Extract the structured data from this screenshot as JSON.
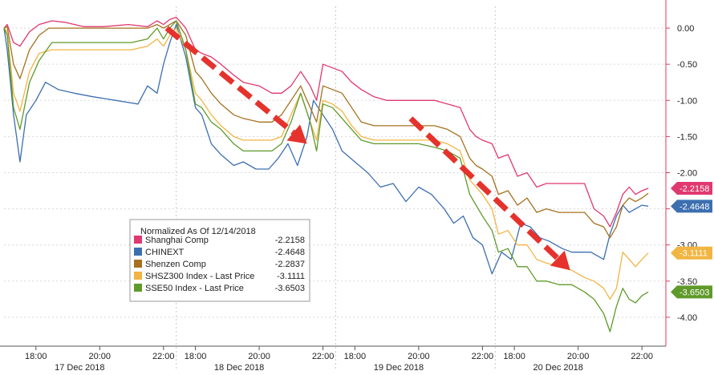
{
  "chart_data": {
    "type": "line",
    "legend": {
      "title": "Normalized As Of 12/14/2018",
      "placement": "left-center"
    },
    "ylim": [
      -4.4,
      0.3
    ],
    "yticks": [
      0.0,
      -0.5,
      -1.0,
      -1.5,
      -2.0,
      -2.5,
      -3.0,
      -3.5,
      -4.0
    ],
    "ytick_labels": [
      "0.00",
      "-0.50",
      "-1.00",
      "-1.50",
      "-2.00",
      "-2.50",
      "-3.00",
      "-3.50",
      "-4.00"
    ],
    "xlim": [
      0,
      4
    ],
    "time_ticks": [
      {
        "x": 0.2,
        "label": "18:00"
      },
      {
        "x": 0.6,
        "label": "20:00"
      },
      {
        "x": 1.0,
        "label": "22:00"
      },
      {
        "x": 1.2,
        "label": "18:00"
      },
      {
        "x": 1.6,
        "label": "20:00"
      },
      {
        "x": 2.0,
        "label": "22:00"
      },
      {
        "x": 2.2,
        "label": "18:00"
      },
      {
        "x": 2.6,
        "label": "20:00"
      },
      {
        "x": 3.0,
        "label": "22:00"
      },
      {
        "x": 3.2,
        "label": "18:00"
      },
      {
        "x": 3.6,
        "label": "20:00"
      },
      {
        "x": 4.0,
        "label": "22:00"
      }
    ],
    "day_separators": [
      1.08,
      2.08,
      3.08
    ],
    "date_labels": [
      {
        "x": 0.55,
        "label": "17 Dec 2018"
      },
      {
        "x": 1.55,
        "label": "18 Dec 2018"
      },
      {
        "x": 2.55,
        "label": "19 Dec 2018"
      },
      {
        "x": 3.55,
        "label": "20 Dec 2018"
      }
    ],
    "series": [
      {
        "name": "Shanghai Comp",
        "last": "-2.2158",
        "color": "#e0386f",
        "x": [
          0,
          0.02,
          0.06,
          0.1,
          0.16,
          0.22,
          0.3,
          0.38,
          0.5,
          0.62,
          0.78,
          0.9,
          0.96,
          1.0,
          1.04,
          1.08,
          1.14,
          1.2,
          1.24,
          1.3,
          1.36,
          1.44,
          1.5,
          1.6,
          1.68,
          1.74,
          1.8,
          1.86,
          1.92,
          1.96,
          2.0,
          2.06,
          2.12,
          2.18,
          2.24,
          2.32,
          2.4,
          2.5,
          2.6,
          2.7,
          2.78,
          2.86,
          2.92,
          2.96,
          3.0,
          3.06,
          3.1,
          3.16,
          3.22,
          3.28,
          3.34,
          3.4,
          3.48,
          3.56,
          3.64,
          3.7,
          3.76,
          3.8,
          3.84,
          3.88,
          3.92,
          3.96,
          4.0,
          4.04
        ],
        "y": [
          0.0,
          0.05,
          -0.2,
          -0.25,
          -0.05,
          0.05,
          0.1,
          0.08,
          0.02,
          0.02,
          0.05,
          0.02,
          0.1,
          0.05,
          0.12,
          0.15,
          0.0,
          -0.3,
          -0.35,
          -0.4,
          -0.5,
          -0.65,
          -0.75,
          -0.8,
          -0.9,
          -0.9,
          -0.8,
          -0.6,
          -0.8,
          -1.0,
          -0.5,
          -0.55,
          -0.6,
          -0.75,
          -0.85,
          -0.95,
          -1.0,
          -1.0,
          -1.0,
          -1.0,
          -1.05,
          -1.1,
          -1.4,
          -1.5,
          -1.55,
          -1.6,
          -1.8,
          -1.75,
          -2.05,
          -2.0,
          -2.2,
          -2.15,
          -2.15,
          -2.15,
          -2.15,
          -2.5,
          -2.6,
          -2.75,
          -2.55,
          -2.3,
          -2.2,
          -2.3,
          -2.25,
          -2.2158
        ]
      },
      {
        "name": "CHINEXT",
        "last": "-2.4648",
        "color": "#3d6fb0",
        "x": [
          0,
          0.02,
          0.06,
          0.1,
          0.14,
          0.2,
          0.26,
          0.34,
          0.44,
          0.56,
          0.7,
          0.84,
          0.9,
          0.96,
          1.0,
          1.04,
          1.08,
          1.14,
          1.2,
          1.24,
          1.3,
          1.36,
          1.44,
          1.5,
          1.58,
          1.66,
          1.72,
          1.78,
          1.84,
          1.9,
          1.94,
          2.0,
          2.06,
          2.12,
          2.2,
          2.28,
          2.36,
          2.44,
          2.52,
          2.6,
          2.68,
          2.76,
          2.82,
          2.88,
          2.94,
          3.0,
          3.06,
          3.12,
          3.18,
          3.24,
          3.3,
          3.36,
          3.42,
          3.5,
          3.56,
          3.62,
          3.68,
          3.72,
          3.76,
          3.8,
          3.84,
          3.88,
          3.92,
          3.96,
          4.0,
          4.04
        ],
        "y": [
          0.0,
          -0.3,
          -1.2,
          -1.85,
          -1.2,
          -1.0,
          -0.75,
          -0.85,
          -0.9,
          -0.95,
          -1.0,
          -1.05,
          -0.8,
          -0.9,
          -0.5,
          -0.2,
          0.05,
          -0.4,
          -1.1,
          -1.2,
          -1.6,
          -1.75,
          -1.9,
          -1.85,
          -1.95,
          -1.95,
          -1.8,
          -1.6,
          -1.9,
          -1.5,
          -1.0,
          -1.2,
          -1.4,
          -1.7,
          -1.85,
          -2.0,
          -2.2,
          -2.15,
          -2.4,
          -2.2,
          -2.3,
          -2.5,
          -2.7,
          -2.6,
          -2.9,
          -3.0,
          -3.4,
          -3.1,
          -3.2,
          -2.7,
          -2.75,
          -2.9,
          -2.95,
          -3.05,
          -3.1,
          -3.1,
          -3.1,
          -3.15,
          -3.2,
          -2.85,
          -2.6,
          -2.45,
          -2.55,
          -2.5,
          -2.45,
          -2.4648
        ]
      },
      {
        "name": "Shenzen Comp",
        "last": "-2.2837",
        "color": "#a6701e",
        "x": [
          0,
          0.02,
          0.06,
          0.1,
          0.16,
          0.22,
          0.28,
          0.36,
          0.5,
          0.64,
          0.78,
          0.9,
          0.96,
          1.0,
          1.04,
          1.08,
          1.14,
          1.2,
          1.24,
          1.3,
          1.36,
          1.44,
          1.5,
          1.6,
          1.68,
          1.74,
          1.8,
          1.86,
          1.92,
          1.96,
          2.0,
          2.06,
          2.12,
          2.18,
          2.24,
          2.32,
          2.4,
          2.5,
          2.6,
          2.7,
          2.78,
          2.86,
          2.92,
          2.96,
          3.0,
          3.06,
          3.1,
          3.16,
          3.22,
          3.28,
          3.34,
          3.4,
          3.48,
          3.56,
          3.64,
          3.7,
          3.76,
          3.8,
          3.84,
          3.88,
          3.92,
          3.96,
          4.0,
          4.04
        ],
        "y": [
          0.0,
          0.02,
          -0.5,
          -0.7,
          -0.3,
          -0.1,
          0.0,
          0.0,
          0.0,
          0.0,
          0.0,
          0.0,
          0.05,
          0.0,
          0.05,
          0.1,
          -0.1,
          -0.6,
          -0.7,
          -0.9,
          -1.05,
          -1.2,
          -1.25,
          -1.3,
          -1.3,
          -1.2,
          -1.0,
          -0.8,
          -1.1,
          -1.3,
          -0.8,
          -0.85,
          -0.9,
          -1.1,
          -1.3,
          -1.35,
          -1.35,
          -1.35,
          -1.35,
          -1.35,
          -1.4,
          -1.5,
          -1.8,
          -1.9,
          -1.95,
          -2.05,
          -2.3,
          -2.25,
          -2.45,
          -2.35,
          -2.55,
          -2.5,
          -2.55,
          -2.55,
          -2.55,
          -2.7,
          -2.75,
          -2.9,
          -2.75,
          -2.45,
          -2.35,
          -2.4,
          -2.35,
          -2.2837
        ]
      },
      {
        "name": "SHSZ300 Index - Last Price",
        "last": "-3.1111",
        "color": "#f2b542",
        "x": [
          0,
          0.02,
          0.06,
          0.1,
          0.16,
          0.22,
          0.3,
          0.4,
          0.52,
          0.66,
          0.8,
          0.9,
          0.96,
          1.0,
          1.04,
          1.08,
          1.14,
          1.2,
          1.24,
          1.3,
          1.36,
          1.44,
          1.5,
          1.6,
          1.68,
          1.74,
          1.8,
          1.86,
          1.92,
          1.96,
          2.0,
          2.06,
          2.12,
          2.18,
          2.24,
          2.32,
          2.4,
          2.5,
          2.6,
          2.7,
          2.78,
          2.86,
          2.92,
          2.96,
          3.0,
          3.06,
          3.1,
          3.16,
          3.22,
          3.28,
          3.34,
          3.4,
          3.48,
          3.56,
          3.64,
          3.7,
          3.76,
          3.8,
          3.84,
          3.88,
          3.92,
          3.96,
          4.0,
          4.04
        ],
        "y": [
          0.0,
          -0.05,
          -0.9,
          -1.15,
          -0.6,
          -0.35,
          -0.3,
          -0.3,
          -0.3,
          -0.3,
          -0.3,
          -0.25,
          -0.15,
          -0.25,
          -0.1,
          0.0,
          -0.3,
          -0.9,
          -1.0,
          -1.2,
          -1.35,
          -1.5,
          -1.55,
          -1.55,
          -1.55,
          -1.5,
          -1.2,
          -0.9,
          -1.3,
          -1.55,
          -1.0,
          -1.05,
          -1.15,
          -1.35,
          -1.5,
          -1.55,
          -1.55,
          -1.55,
          -1.55,
          -1.55,
          -1.6,
          -1.7,
          -2.1,
          -2.2,
          -2.3,
          -2.5,
          -2.85,
          -2.8,
          -3.0,
          -3.0,
          -3.2,
          -3.25,
          -3.3,
          -3.35,
          -3.45,
          -3.5,
          -3.6,
          -3.75,
          -3.6,
          -3.1,
          -3.2,
          -3.3,
          -3.2,
          -3.1111
        ]
      },
      {
        "name": "SSE50 Index - Last Price",
        "last": "-3.6503",
        "color": "#5f9a2a",
        "x": [
          0,
          0.02,
          0.06,
          0.1,
          0.16,
          0.22,
          0.3,
          0.4,
          0.52,
          0.66,
          0.8,
          0.9,
          0.96,
          1.0,
          1.04,
          1.08,
          1.14,
          1.2,
          1.24,
          1.3,
          1.36,
          1.44,
          1.5,
          1.6,
          1.68,
          1.74,
          1.8,
          1.86,
          1.92,
          1.96,
          2.0,
          2.06,
          2.12,
          2.18,
          2.24,
          2.32,
          2.4,
          2.5,
          2.6,
          2.7,
          2.78,
          2.86,
          2.92,
          2.96,
          3.0,
          3.06,
          3.1,
          3.16,
          3.22,
          3.28,
          3.34,
          3.4,
          3.48,
          3.56,
          3.64,
          3.7,
          3.76,
          3.8,
          3.84,
          3.88,
          3.92,
          3.96,
          4.0,
          4.04
        ],
        "y": [
          0.0,
          -0.1,
          -1.1,
          -1.4,
          -0.75,
          -0.45,
          -0.2,
          -0.2,
          -0.2,
          -0.2,
          -0.2,
          -0.15,
          0.0,
          -0.15,
          0.0,
          0.1,
          -0.3,
          -1.05,
          -1.1,
          -1.3,
          -1.4,
          -1.6,
          -1.7,
          -1.7,
          -1.7,
          -1.6,
          -1.3,
          -0.9,
          -1.3,
          -1.7,
          -1.05,
          -1.1,
          -1.25,
          -1.4,
          -1.55,
          -1.6,
          -1.6,
          -1.6,
          -1.6,
          -1.65,
          -1.7,
          -1.8,
          -2.3,
          -2.45,
          -2.6,
          -2.8,
          -3.1,
          -3.05,
          -3.3,
          -3.3,
          -3.5,
          -3.5,
          -3.55,
          -3.55,
          -3.65,
          -3.75,
          -3.95,
          -4.2,
          -3.85,
          -3.6,
          -3.75,
          -3.8,
          -3.7,
          -3.6503
        ]
      }
    ],
    "arrows": [
      {
        "from": [
          1.02,
          0.0
        ],
        "to": [
          1.9,
          -1.6
        ],
        "color": "#e5322d"
      },
      {
        "from": [
          2.55,
          -1.25
        ],
        "to": [
          3.55,
          -3.35
        ],
        "color": "#e5322d"
      }
    ]
  }
}
